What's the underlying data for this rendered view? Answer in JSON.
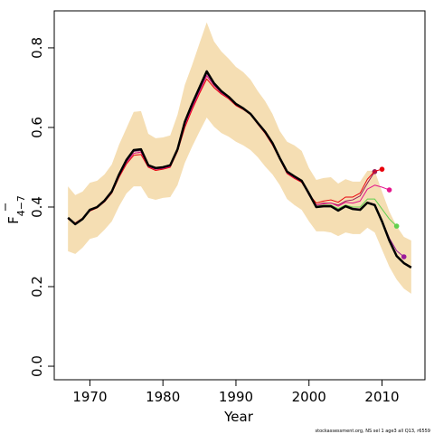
{
  "chart_data": {
    "type": "line",
    "xlabel": "Year",
    "ylabel": "F",
    "ylabel_subscript": "4−7",
    "footer": "stockassessment.org, NS sel 1 age3 all Q13, r6559",
    "xlim": [
      1965.12,
      2015.88
    ],
    "ylim": [
      -0.034,
      0.893
    ],
    "xticks": [
      1970,
      1980,
      1990,
      2000,
      2010
    ],
    "yticks": [
      {
        "value": 0,
        "label": "0.0"
      },
      0.2,
      0.4,
      0.6,
      0.8
    ],
    "x": [
      1967,
      1968,
      1969,
      1970,
      1971,
      1972,
      1973,
      1974,
      1975,
      1976,
      1977,
      1978,
      1979,
      1980,
      1981,
      1982,
      1983,
      1984,
      1985,
      1986,
      1987,
      1988,
      1989,
      1990,
      1991,
      1992,
      1993,
      1994,
      1995,
      1996,
      1997,
      1998,
      1999,
      2000,
      2001,
      2002,
      2003,
      2004,
      2005,
      2006,
      2007,
      2008,
      2009,
      2010,
      2011,
      2012,
      2013,
      2014
    ],
    "band": {
      "color": "#f5deb3",
      "upper": [
        0.452,
        0.43,
        0.439,
        0.461,
        0.466,
        0.482,
        0.507,
        0.557,
        0.598,
        0.639,
        0.641,
        0.584,
        0.573,
        0.575,
        0.58,
        0.632,
        0.707,
        0.757,
        0.811,
        0.864,
        0.816,
        0.791,
        0.773,
        0.752,
        0.739,
        0.72,
        0.691,
        0.666,
        0.634,
        0.591,
        0.564,
        0.555,
        0.541,
        0.498,
        0.468,
        0.473,
        0.475,
        0.459,
        0.47,
        0.464,
        0.464,
        0.491,
        0.491,
        0.439,
        0.389,
        0.352,
        0.325,
        0.316
      ],
      "lower": [
        0.289,
        0.282,
        0.298,
        0.32,
        0.325,
        0.343,
        0.364,
        0.402,
        0.434,
        0.452,
        0.452,
        0.423,
        0.418,
        0.423,
        0.425,
        0.455,
        0.511,
        0.552,
        0.589,
        0.625,
        0.602,
        0.586,
        0.577,
        0.564,
        0.555,
        0.543,
        0.525,
        0.502,
        0.482,
        0.455,
        0.42,
        0.405,
        0.393,
        0.364,
        0.339,
        0.339,
        0.336,
        0.327,
        0.336,
        0.332,
        0.332,
        0.348,
        0.336,
        0.293,
        0.25,
        0.218,
        0.195,
        0.182
      ]
    },
    "series": [
      {
        "color": "#000000",
        "width": 2.5,
        "values": [
          0.373,
          0.357,
          0.37,
          0.393,
          0.4,
          0.416,
          0.439,
          0.482,
          0.518,
          0.543,
          0.545,
          0.505,
          0.498,
          0.5,
          0.505,
          0.545,
          0.614,
          0.659,
          0.7,
          0.741,
          0.711,
          0.691,
          0.677,
          0.659,
          0.648,
          0.634,
          0.611,
          0.589,
          0.561,
          0.523,
          0.489,
          0.477,
          0.466,
          0.434,
          0.4,
          0.402,
          0.402,
          0.391,
          0.402,
          0.395,
          0.393,
          0.411,
          0.405,
          0.364,
          0.316,
          0.277,
          0.259,
          0.248
        ]
      },
      {
        "color": "#9b1b5a",
        "width": 1,
        "values": [
          0.371,
          0.358,
          0.371,
          0.391,
          0.399,
          0.414,
          0.437,
          0.478,
          0.512,
          0.535,
          0.538,
          0.502,
          0.495,
          0.497,
          0.502,
          0.542,
          0.606,
          0.65,
          0.69,
          0.73,
          0.705,
          0.687,
          0.674,
          0.657,
          0.646,
          0.633,
          0.609,
          0.587,
          0.558,
          0.521,
          0.486,
          0.474,
          0.464,
          0.43,
          0.405,
          0.41,
          0.41,
          0.405,
          0.415,
          0.418,
          0.428,
          0.46,
          0.489,
          null,
          null,
          null,
          null,
          null
        ]
      },
      {
        "color": "#e8000b",
        "width": 1,
        "values": [
          0.37,
          0.36,
          0.372,
          0.39,
          0.398,
          0.413,
          0.435,
          0.475,
          0.508,
          0.53,
          0.532,
          0.5,
          0.492,
          0.495,
          0.5,
          0.54,
          0.6,
          0.645,
          0.685,
          0.722,
          0.7,
          0.684,
          0.672,
          0.655,
          0.645,
          0.632,
          0.608,
          0.585,
          0.556,
          0.52,
          0.484,
          0.472,
          0.462,
          0.432,
          0.41,
          0.415,
          0.418,
          0.412,
          0.425,
          0.425,
          0.435,
          0.47,
          0.49,
          0.495,
          null,
          null,
          null,
          null
        ]
      },
      {
        "color": "#e5148c",
        "width": 1,
        "values": [
          0.371,
          0.358,
          0.371,
          0.391,
          0.399,
          0.414,
          0.437,
          0.478,
          0.512,
          0.535,
          0.538,
          0.502,
          0.495,
          0.497,
          0.502,
          0.542,
          0.606,
          0.65,
          0.69,
          0.73,
          0.705,
          0.687,
          0.674,
          0.657,
          0.646,
          0.633,
          0.609,
          0.587,
          0.558,
          0.521,
          0.486,
          0.474,
          0.464,
          0.432,
          0.405,
          0.408,
          0.41,
          0.402,
          0.412,
          0.41,
          0.415,
          0.445,
          0.455,
          0.45,
          0.443,
          null,
          null,
          null
        ]
      },
      {
        "color": "#61d04f",
        "width": 1,
        "values": [
          0.372,
          0.357,
          0.37,
          0.392,
          0.4,
          0.415,
          0.438,
          0.48,
          0.515,
          0.54,
          0.542,
          0.504,
          0.497,
          0.499,
          0.504,
          0.544,
          0.61,
          0.655,
          0.695,
          0.736,
          0.708,
          0.689,
          0.676,
          0.658,
          0.647,
          0.634,
          0.61,
          0.588,
          0.56,
          0.522,
          0.488,
          0.476,
          0.465,
          0.43,
          0.402,
          0.405,
          0.405,
          0.396,
          0.405,
          0.4,
          0.4,
          0.42,
          0.42,
          0.395,
          0.37,
          0.352,
          null,
          null
        ]
      },
      {
        "color": "#9b1b9b",
        "width": 1,
        "values": [
          0.372,
          0.357,
          0.37,
          0.392,
          0.4,
          0.415,
          0.438,
          0.48,
          0.515,
          0.54,
          0.542,
          0.504,
          0.497,
          0.499,
          0.504,
          0.544,
          0.61,
          0.655,
          0.695,
          0.736,
          0.708,
          0.689,
          0.676,
          0.658,
          0.647,
          0.634,
          0.61,
          0.588,
          0.56,
          0.522,
          0.488,
          0.476,
          0.465,
          0.43,
          0.4,
          0.403,
          0.403,
          0.393,
          0.403,
          0.397,
          0.395,
          0.412,
          0.407,
          0.366,
          0.322,
          0.29,
          0.275,
          null
        ]
      }
    ]
  }
}
